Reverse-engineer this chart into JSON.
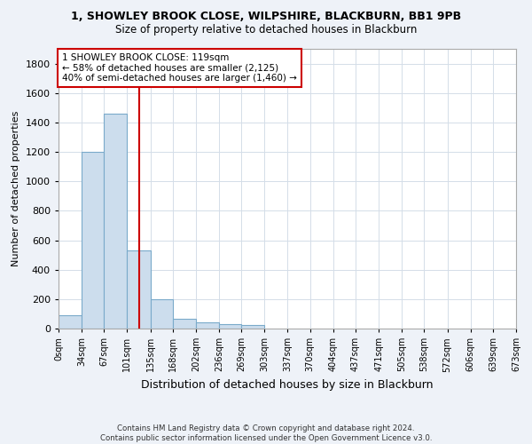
{
  "title_line1": "1, SHOWLEY BROOK CLOSE, WILPSHIRE, BLACKBURN, BB1 9PB",
  "title_line2": "Size of property relative to detached houses in Blackburn",
  "xlabel": "Distribution of detached houses by size in Blackburn",
  "ylabel": "Number of detached properties",
  "footnote": "Contains HM Land Registry data © Crown copyright and database right 2024.\nContains public sector information licensed under the Open Government Licence v3.0.",
  "bar_left_edges": [
    0,
    34,
    67,
    101,
    135,
    168,
    202,
    236,
    269,
    303,
    337,
    370,
    404,
    437,
    471,
    505,
    538,
    572,
    606,
    639
  ],
  "bar_widths": [
    34,
    33,
    34,
    34,
    33,
    34,
    34,
    33,
    34,
    34,
    33,
    34,
    33,
    34,
    34,
    33,
    34,
    34,
    33,
    34
  ],
  "bar_heights": [
    90,
    1200,
    1460,
    530,
    200,
    65,
    40,
    30,
    25,
    0,
    0,
    0,
    0,
    0,
    0,
    0,
    0,
    0,
    0,
    0
  ],
  "bar_color": "#ccdded",
  "bar_edge_color": "#7aaaca",
  "tick_labels": [
    "0sqm",
    "34sqm",
    "67sqm",
    "101sqm",
    "135sqm",
    "168sqm",
    "202sqm",
    "236sqm",
    "269sqm",
    "303sqm",
    "337sqm",
    "370sqm",
    "404sqm",
    "437sqm",
    "471sqm",
    "505sqm",
    "538sqm",
    "572sqm",
    "606sqm",
    "639sqm",
    "673sqm"
  ],
  "ylim": [
    0,
    1900
  ],
  "yticks": [
    0,
    200,
    400,
    600,
    800,
    1000,
    1200,
    1400,
    1600,
    1800
  ],
  "property_line_x": 119,
  "annotation_text": "1 SHOWLEY BROOK CLOSE: 119sqm\n← 58% of detached houses are smaller (2,125)\n40% of semi-detached houses are larger (1,460) →",
  "annotation_box_color": "#ffffff",
  "annotation_box_edge_color": "#cc0000",
  "annotation_line_color": "#cc0000",
  "grid_color": "#d4dde8",
  "background_color": "#eef2f8",
  "plot_background_color": "#ffffff"
}
